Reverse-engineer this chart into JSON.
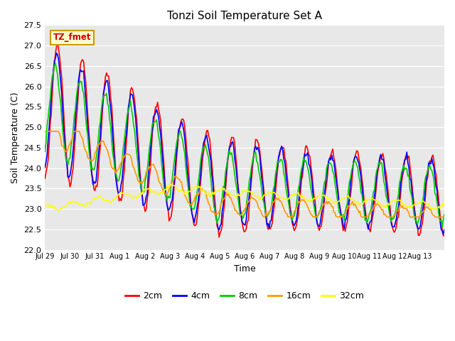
{
  "title": "Tonzi Soil Temperature Set A",
  "xlabel": "Time",
  "ylabel": "Soil Temperature (C)",
  "ylim": [
    22.0,
    27.5
  ],
  "series_labels": [
    "2cm",
    "4cm",
    "8cm",
    "16cm",
    "32cm"
  ],
  "series_colors": [
    "#ff0000",
    "#0000ff",
    "#00cc00",
    "#ff9900",
    "#ffff00"
  ],
  "line_widths": [
    1.5,
    1.5,
    1.5,
    1.5,
    1.5
  ],
  "annotation_text": "TZ_fmet",
  "annotation_color": "#cc0000",
  "annotation_bg": "#ffffcc",
  "annotation_border": "#cc9900",
  "x_tick_labels": [
    "Jul 29",
    "Jul 30",
    "Jul 31",
    "Aug 1",
    "Aug 2",
    "Aug 3",
    "Aug 4",
    "Aug 5",
    "Aug 6",
    "Aug 7",
    "Aug 8",
    "Aug 9",
    "Aug 10",
    "Aug 11",
    "Aug 12",
    "Aug 13"
  ],
  "background_color": "#e8e8e8"
}
